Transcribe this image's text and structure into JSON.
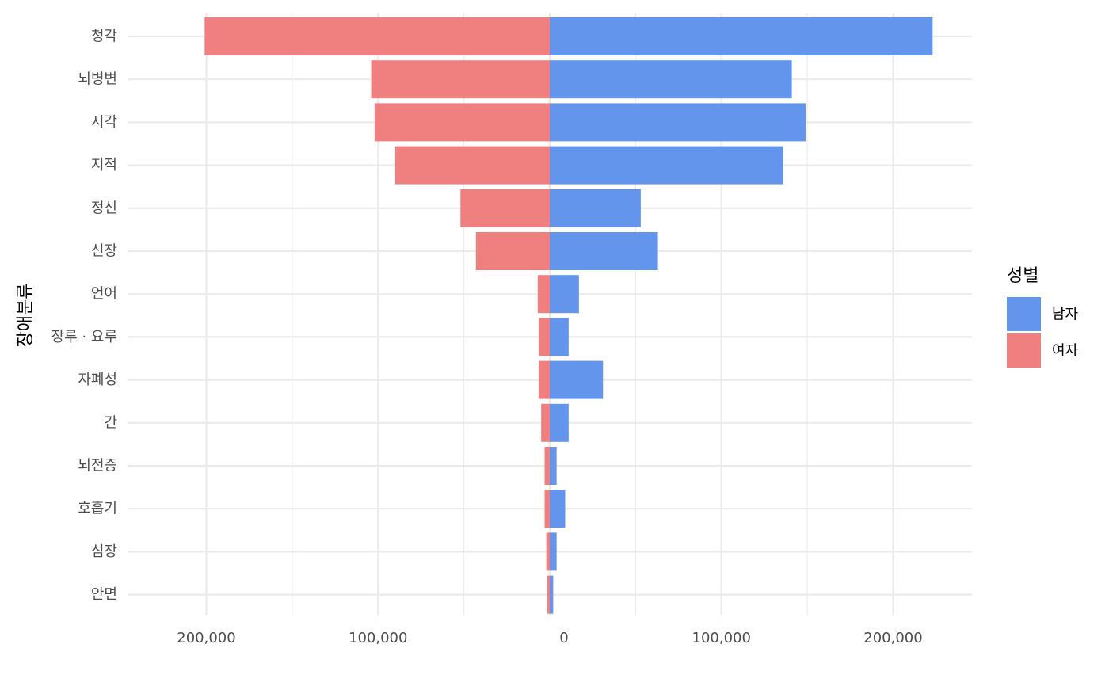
{
  "chart_data": {
    "type": "bar",
    "orientation": "horizontal",
    "layout": "population-pyramid",
    "ylabel": "장애분류",
    "categories": [
      "청각",
      "뇌병변",
      "시각",
      "지적",
      "정신",
      "신장",
      "언어",
      "장루 · 요루",
      "자폐성",
      "간",
      "뇌전증",
      "호흡기",
      "심장",
      "안면"
    ],
    "series": [
      {
        "name": "남자",
        "color": "#6495ED",
        "direction": "right",
        "values": [
          223000,
          141000,
          149000,
          136000,
          53000,
          63000,
          17000,
          11000,
          31000,
          11000,
          4000,
          9000,
          4000,
          2000
        ]
      },
      {
        "name": "여자",
        "color": "#F08080",
        "direction": "left",
        "values": [
          201000,
          104000,
          102000,
          90000,
          52000,
          43000,
          7000,
          6500,
          6500,
          5000,
          3000,
          3000,
          2000,
          1500
        ]
      }
    ],
    "xlim": [
      -250000,
      250000
    ],
    "x_ticks": [
      -200000,
      -100000,
      0,
      100000,
      200000
    ],
    "x_tick_labels": [
      "200,000",
      "100,000",
      "0",
      "100,000",
      "200,000"
    ],
    "grid": true,
    "legend": {
      "title": "성별",
      "position": "right",
      "entries": [
        "남자",
        "여자"
      ]
    }
  }
}
